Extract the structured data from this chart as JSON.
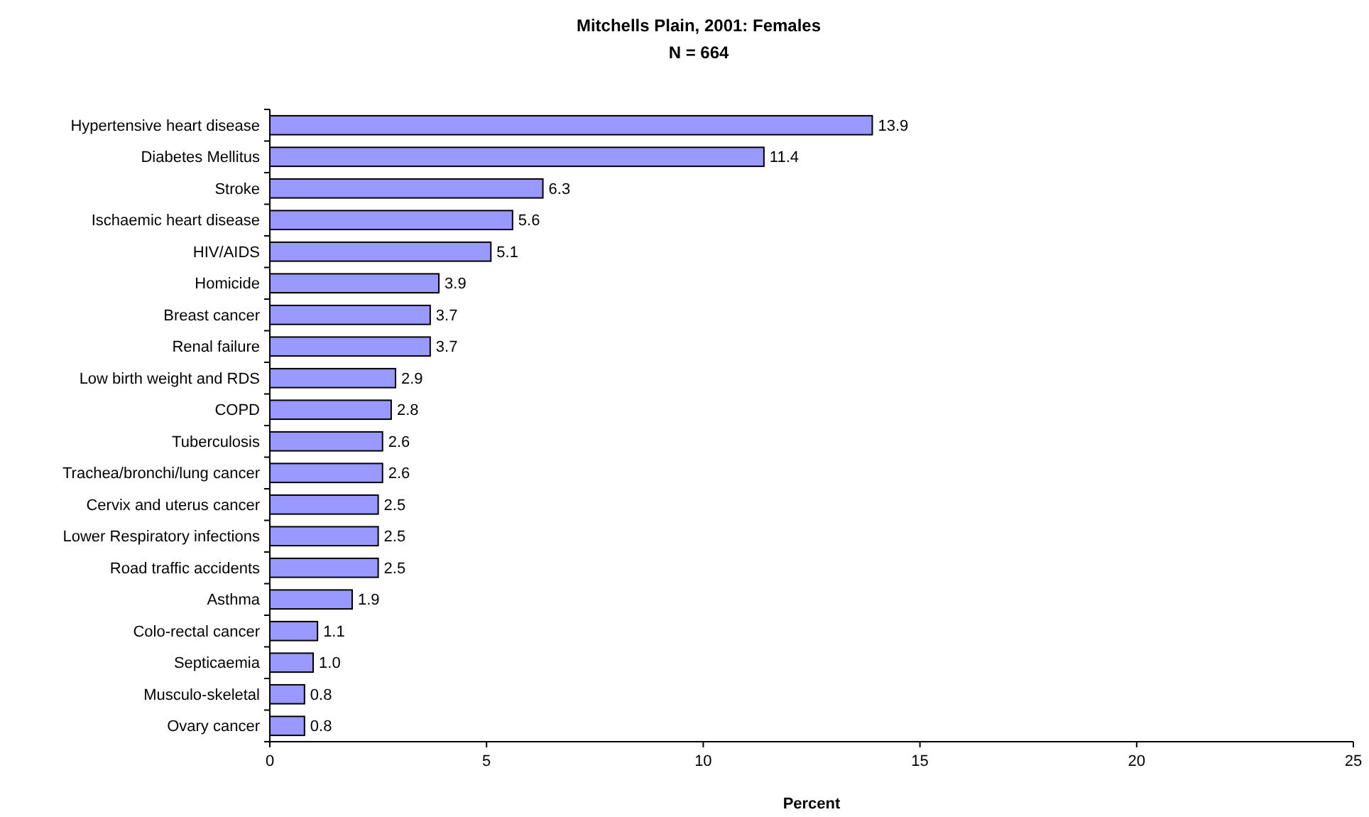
{
  "chart_data": {
    "type": "bar",
    "orientation": "horizontal",
    "title": "Mitchells Plain, 2001: Females",
    "subtitle": "N = 664",
    "xlabel": "Percent",
    "categories": [
      "Hypertensive heart disease",
      "Diabetes Mellitus",
      "Stroke",
      "Ischaemic heart disease",
      "HIV/AIDS",
      "Homicide",
      "Breast cancer",
      "Renal failure",
      "Low birth weight and RDS",
      "COPD",
      "Tuberculosis",
      "Trachea/bronchi/lung cancer",
      "Cervix and uterus cancer",
      "Lower Respiratory infections",
      "Road traffic accidents",
      "Asthma",
      "Colo-rectal cancer",
      "Septicaemia",
      "Musculo-skeletal",
      "Ovary cancer"
    ],
    "values": [
      13.9,
      11.4,
      6.3,
      5.6,
      5.1,
      3.9,
      3.7,
      3.7,
      2.9,
      2.8,
      2.6,
      2.6,
      2.5,
      2.5,
      2.5,
      1.9,
      1.1,
      1.0,
      0.8,
      0.8
    ],
    "value_labels": [
      "13.9",
      "11.4",
      "6.3",
      "5.6",
      "5.1",
      "3.9",
      "3.7",
      "3.7",
      "2.9",
      "2.8",
      "2.6",
      "2.6",
      "2.5",
      "2.5",
      "2.5",
      "1.9",
      "1.1",
      "1.0",
      "0.8",
      "0.8"
    ],
    "color": "#9999ff",
    "xlim": [
      0,
      25
    ],
    "xticks": [
      0,
      5,
      10,
      15,
      20,
      25
    ]
  }
}
